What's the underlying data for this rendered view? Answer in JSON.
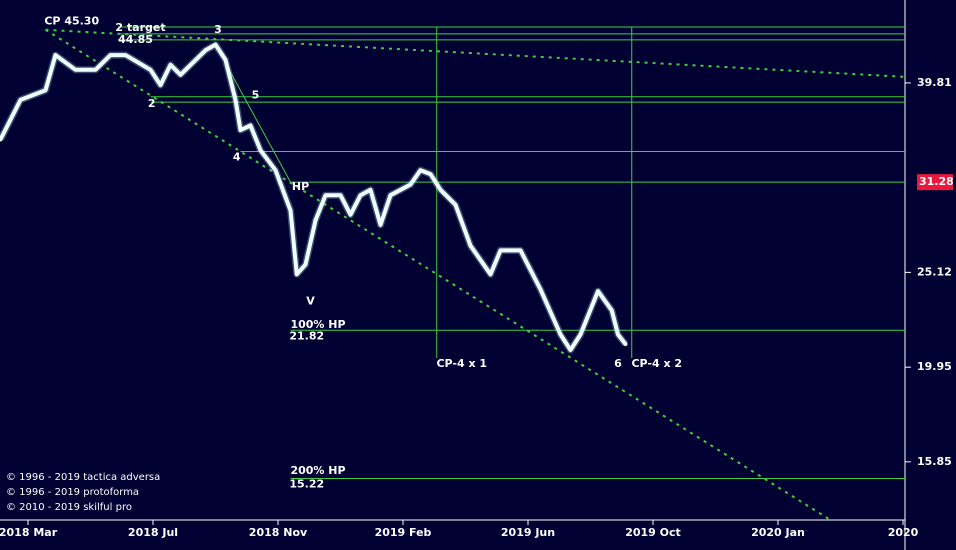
{
  "chart_data": {
    "type": "line",
    "log_scale": true,
    "background": "#000033",
    "xlim": [
      -0.224,
      7.016
    ],
    "ylim": [
      13.76,
      48.7
    ],
    "xticks": [
      {
        "value": 0,
        "label": "2018 Mar"
      },
      {
        "value": 1,
        "label": "2018 Jul"
      },
      {
        "value": 2,
        "label": "2018 Nov"
      },
      {
        "value": 3,
        "label": "2019 Feb"
      },
      {
        "value": 4,
        "label": "2019 Jun"
      },
      {
        "value": 5,
        "label": "2019 Oct"
      },
      {
        "value": 6,
        "label": "2020 Jan"
      },
      {
        "value": 7,
        "label": "2020"
      }
    ],
    "yticks": [
      15.85,
      19.95,
      25.12,
      39.81
    ],
    "last_price": 31.28,
    "last_price_color": "#e8193c",
    "series": [
      {
        "name": "price",
        "color": "#f2ffff",
        "x": [
          -0.22,
          -0.06,
          0.14,
          0.22,
          0.38,
          0.54,
          0.66,
          0.78,
          0.98,
          1.06,
          1.14,
          1.22,
          1.42,
          1.5,
          1.58,
          1.66,
          1.7,
          1.78,
          1.86,
          1.98,
          2.1,
          2.15,
          2.22,
          2.3,
          2.38,
          2.5,
          2.58,
          2.66,
          2.74,
          2.82,
          2.9,
          3.06,
          3.14,
          3.22,
          3.3,
          3.42,
          3.54,
          3.7,
          3.78,
          3.94,
          4.1,
          4.26,
          4.34,
          4.42,
          4.56,
          4.67,
          4.72,
          4.78
        ],
        "values": [
          34.7,
          38.2,
          39.1,
          42.6,
          41.1,
          41.1,
          42.6,
          42.6,
          41.1,
          39.6,
          41.6,
          40.6,
          43.1,
          43.7,
          42.1,
          38.2,
          35.5,
          35.9,
          33.8,
          32.2,
          29.2,
          25.0,
          25.6,
          28.5,
          30.3,
          30.3,
          28.9,
          30.3,
          30.7,
          28.2,
          30.3,
          31.1,
          32.2,
          31.9,
          30.7,
          29.6,
          26.8,
          25.0,
          26.5,
          26.5,
          24.1,
          21.6,
          20.8,
          21.6,
          24.0,
          22.9,
          21.6,
          21.1
        ]
      }
    ],
    "annotation_color": "#3fcf3f",
    "levels": [
      {
        "value": 45.6,
        "from": 0.72
      },
      {
        "value": 44.85,
        "from": 0.72
      },
      {
        "value": 44.2,
        "from": 0.72
      },
      {
        "value": 38.5,
        "from": 0.98
      },
      {
        "value": 38.0,
        "from": 0.98
      },
      {
        "value": 33.7,
        "from": 1.7
      },
      {
        "value": 31.28,
        "from": 2.1
      },
      {
        "value": 21.82,
        "from": 2.1
      },
      {
        "value": 15.22,
        "from": 2.1
      }
    ],
    "verticals": [
      {
        "x": 3.27,
        "from": 20.4,
        "to": 45.6
      },
      {
        "x": 4.83,
        "from": 20.4,
        "to": 45.6
      }
    ],
    "trendlines": [
      {
        "x": [
          0.14,
          7.02
        ],
        "y": [
          45.3,
          40.4
        ],
        "dashed": true
      },
      {
        "x": [
          0.14,
          6.42
        ],
        "y": [
          45.3,
          13.76
        ],
        "dashed": true
      },
      {
        "x": [
          1.5,
          2.1
        ],
        "y": [
          43.7,
          31.28
        ],
        "dashed": false
      }
    ],
    "annotations": [
      {
        "text": "CP 45.30",
        "x": 0.35,
        "y": 46.2
      },
      {
        "text": "2 target",
        "x": 0.9,
        "y": 45.5
      },
      {
        "text": "44.85",
        "x": 0.86,
        "y": 44.2
      },
      {
        "text": "3",
        "x": 1.52,
        "y": 45.3
      },
      {
        "text": "2",
        "x": 0.99,
        "y": 37.8
      },
      {
        "text": "4",
        "x": 1.67,
        "y": 33.2
      },
      {
        "text": "5",
        "x": 1.82,
        "y": 38.6
      },
      {
        "text": "HP",
        "x": 2.18,
        "y": 30.9
      },
      {
        "text": "V",
        "x": 2.26,
        "y": 23.4
      },
      {
        "text": "100% HP",
        "x": 2.32,
        "y": 22.1
      },
      {
        "text": "21.82",
        "x": 2.23,
        "y": 21.5
      },
      {
        "text": "200% HP",
        "x": 2.32,
        "y": 15.5
      },
      {
        "text": "15.22",
        "x": 2.23,
        "y": 15.0
      },
      {
        "text": "CP-4 x 1",
        "x": 3.47,
        "y": 20.1
      },
      {
        "text": "6",
        "x": 4.72,
        "y": 20.1
      },
      {
        "text": "CP-4 x 2",
        "x": 5.03,
        "y": 20.1
      }
    ],
    "copyright": [
      "© 1996 - 2019 tactica adversa",
      "© 1996 - 2019 protoforma",
      "© 2010 - 2019 skilful pro"
    ]
  }
}
